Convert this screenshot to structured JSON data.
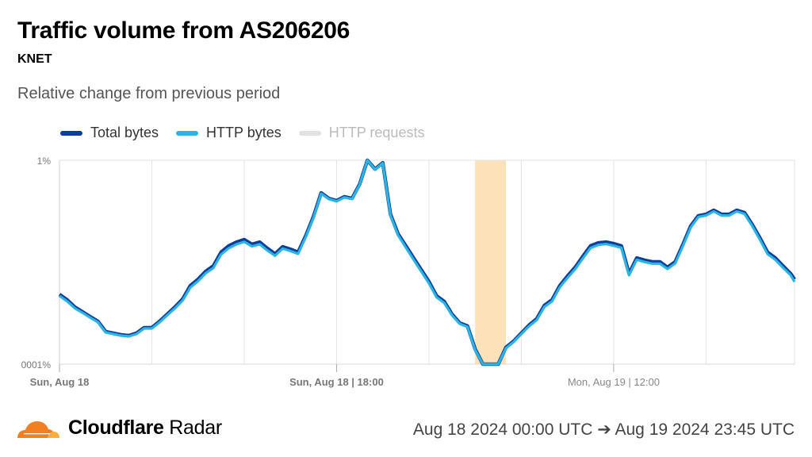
{
  "header": {
    "title": "Traffic volume from AS206206",
    "subtitle": "KNET",
    "description": "Relative change from previous period"
  },
  "legend": [
    {
      "label": "Total bytes",
      "color": "#0a3d9c",
      "active": true
    },
    {
      "label": "HTTP bytes",
      "color": "#2db4e0",
      "active": true
    },
    {
      "label": "HTTP requests",
      "color": "#e2e2e2",
      "active": false
    }
  ],
  "footer": {
    "brand_bold": "Cloudflare",
    "brand_light": "Radar",
    "date_range": "Aug 18 2024 00:00 UTC ➔ Aug 19 2024 23:45 UTC"
  },
  "chart_data": {
    "type": "line",
    "title": "Traffic volume from AS206206",
    "ylabel": "",
    "xlabel": "",
    "y_ticks": [
      "1%",
      "0001%"
    ],
    "ylim": [
      0,
      1
    ],
    "x_ticks": [
      {
        "label": "Sun, Aug 18",
        "at": "2024-08-18T00:00",
        "bold": true
      },
      {
        "label": "Sun, Aug 18 | 18:00",
        "at": "2024-08-18T18:00",
        "bold": true
      },
      {
        "label": "Mon, Aug 19 | 12:00",
        "at": "2024-08-19T12:00",
        "bold": false
      }
    ],
    "xlim": [
      "2024-08-18T00:00",
      "2024-08-19T23:45"
    ],
    "grid": true,
    "legend_position": "top-left",
    "highlight": {
      "from": "2024-08-19T03:00",
      "to": "2024-08-19T05:00",
      "color": "#fde1b8"
    },
    "x": [
      "2024-08-18T00:00",
      "2024-08-18T00:30",
      "2024-08-18T01:00",
      "2024-08-18T01:30",
      "2024-08-18T02:00",
      "2024-08-18T02:30",
      "2024-08-18T03:00",
      "2024-08-18T03:30",
      "2024-08-18T04:00",
      "2024-08-18T04:30",
      "2024-08-18T05:00",
      "2024-08-18T05:30",
      "2024-08-18T06:00",
      "2024-08-18T06:30",
      "2024-08-18T07:00",
      "2024-08-18T07:30",
      "2024-08-18T08:00",
      "2024-08-18T08:30",
      "2024-08-18T09:00",
      "2024-08-18T09:30",
      "2024-08-18T10:00",
      "2024-08-18T10:30",
      "2024-08-18T11:00",
      "2024-08-18T11:30",
      "2024-08-18T12:00",
      "2024-08-18T12:30",
      "2024-08-18T13:00",
      "2024-08-18T13:30",
      "2024-08-18T14:00",
      "2024-08-18T14:30",
      "2024-08-18T15:00",
      "2024-08-18T15:30",
      "2024-08-18T16:00",
      "2024-08-18T16:30",
      "2024-08-18T17:00",
      "2024-08-18T17:30",
      "2024-08-18T18:00",
      "2024-08-18T18:30",
      "2024-08-18T19:00",
      "2024-08-18T19:30",
      "2024-08-18T20:00",
      "2024-08-18T20:30",
      "2024-08-18T21:00",
      "2024-08-18T21:30",
      "2024-08-18T22:00",
      "2024-08-18T22:30",
      "2024-08-18T23:00",
      "2024-08-18T23:30",
      "2024-08-19T00:00",
      "2024-08-19T00:30",
      "2024-08-19T01:00",
      "2024-08-19T01:30",
      "2024-08-19T02:00",
      "2024-08-19T02:30",
      "2024-08-19T03:00",
      "2024-08-19T03:30",
      "2024-08-19T04:00",
      "2024-08-19T04:30",
      "2024-08-19T05:00",
      "2024-08-19T05:30",
      "2024-08-19T06:00",
      "2024-08-19T06:30",
      "2024-08-19T07:00",
      "2024-08-19T07:30",
      "2024-08-19T08:00",
      "2024-08-19T08:30",
      "2024-08-19T09:00",
      "2024-08-19T09:30",
      "2024-08-19T10:00",
      "2024-08-19T10:30",
      "2024-08-19T11:00",
      "2024-08-19T11:30",
      "2024-08-19T12:00",
      "2024-08-19T12:30",
      "2024-08-19T13:00",
      "2024-08-19T13:30",
      "2024-08-19T14:00",
      "2024-08-19T14:30",
      "2024-08-19T15:00",
      "2024-08-19T15:30",
      "2024-08-19T16:00",
      "2024-08-19T16:30",
      "2024-08-19T17:00",
      "2024-08-19T17:30",
      "2024-08-19T18:00",
      "2024-08-19T18:30",
      "2024-08-19T19:00",
      "2024-08-19T19:30",
      "2024-08-19T20:00",
      "2024-08-19T20:30",
      "2024-08-19T21:00",
      "2024-08-19T21:30",
      "2024-08-19T22:00",
      "2024-08-19T22:30",
      "2024-08-19T23:00",
      "2024-08-19T23:30",
      "2024-08-19T23:45"
    ],
    "series": [
      {
        "name": "Total bytes",
        "color": "#0a3d9c",
        "values": [
          0.342,
          0.315,
          0.28,
          0.257,
          0.233,
          0.21,
          0.16,
          0.152,
          0.144,
          0.14,
          0.152,
          0.179,
          0.179,
          0.21,
          0.245,
          0.28,
          0.319,
          0.385,
          0.416,
          0.455,
          0.482,
          0.549,
          0.58,
          0.599,
          0.611,
          0.588,
          0.599,
          0.568,
          0.541,
          0.576,
          0.564,
          0.549,
          0.63,
          0.724,
          0.84,
          0.813,
          0.802,
          0.821,
          0.813,
          0.883,
          1.0,
          0.957,
          0.988,
          0.735,
          0.638,
          0.58,
          0.521,
          0.463,
          0.405,
          0.335,
          0.307,
          0.245,
          0.202,
          0.187,
          0.074,
          0,
          0,
          0,
          0.082,
          0.113,
          0.152,
          0.191,
          0.222,
          0.288,
          0.315,
          0.385,
          0.432,
          0.475,
          0.529,
          0.58,
          0.595,
          0.599,
          0.591,
          0.58,
          0.444,
          0.521,
          0.51,
          0.502,
          0.502,
          0.475,
          0.502,
          0.588,
          0.677,
          0.728,
          0.735,
          0.755,
          0.735,
          0.735,
          0.755,
          0.743,
          0.685,
          0.619,
          0.549,
          0.521,
          0.482,
          0.444,
          0.416
        ]
      },
      {
        "name": "HTTP bytes",
        "color": "#2db4e0",
        "values": [
          0.335,
          0.308,
          0.274,
          0.252,
          0.228,
          0.206,
          0.156,
          0.148,
          0.14,
          0.136,
          0.148,
          0.175,
          0.175,
          0.205,
          0.24,
          0.274,
          0.312,
          0.376,
          0.407,
          0.446,
          0.472,
          0.538,
          0.569,
          0.588,
          0.6,
          0.578,
          0.588,
          0.558,
          0.532,
          0.567,
          0.555,
          0.541,
          0.624,
          0.718,
          0.836,
          0.81,
          0.799,
          0.818,
          0.81,
          0.88,
          1.0,
          0.955,
          0.986,
          0.73,
          0.632,
          0.572,
          0.513,
          0.455,
          0.397,
          0.328,
          0.3,
          0.24,
          0.198,
          0.183,
          0.07,
          0,
          0,
          0,
          0.078,
          0.109,
          0.148,
          0.186,
          0.216,
          0.281,
          0.308,
          0.377,
          0.423,
          0.466,
          0.519,
          0.57,
          0.585,
          0.589,
          0.581,
          0.571,
          0.436,
          0.512,
          0.501,
          0.493,
          0.493,
          0.467,
          0.494,
          0.58,
          0.67,
          0.722,
          0.729,
          0.749,
          0.729,
          0.729,
          0.749,
          0.737,
          0.678,
          0.611,
          0.54,
          0.512,
          0.473,
          0.436,
          0.404
        ]
      }
    ]
  }
}
